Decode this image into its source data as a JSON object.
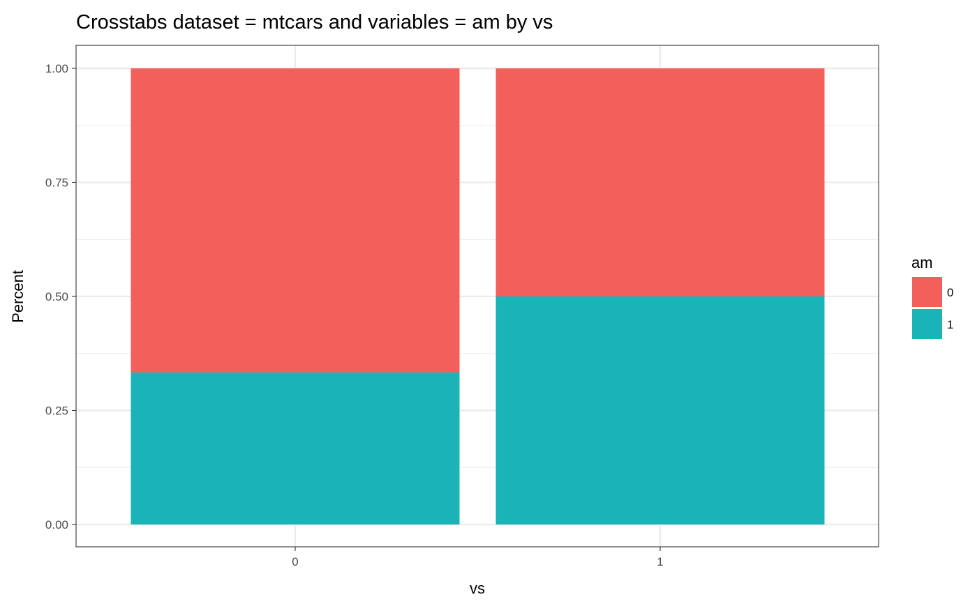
{
  "chart_data": {
    "type": "bar",
    "stacked": true,
    "title": "Crosstabs dataset = mtcars and variables = am by vs",
    "xlabel": "vs",
    "ylabel": "Percent",
    "categories": [
      "0",
      "1"
    ],
    "ylim": [
      0,
      1
    ],
    "yticks": [
      "0.00",
      "0.25",
      "0.50",
      "0.75",
      "1.00"
    ],
    "ytick_values": [
      0,
      0.25,
      0.5,
      0.75,
      1
    ],
    "grid": true,
    "legend": {
      "title": "am",
      "placement": "right"
    },
    "series": [
      {
        "name": "0",
        "color": "#F3605C",
        "values": [
          0.6667,
          0.5
        ]
      },
      {
        "name": "1",
        "color": "#1AB4B8",
        "values": [
          0.3333,
          0.5
        ]
      }
    ]
  }
}
